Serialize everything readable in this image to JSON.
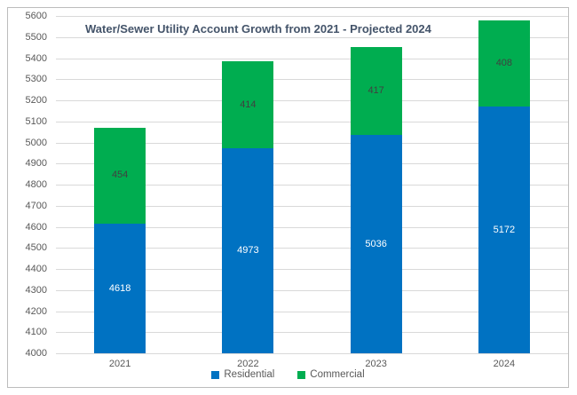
{
  "chart_data": {
    "type": "bar",
    "stacked": true,
    "title": "Water/Sewer Utility Account Growth from 2021 - Projected 2024",
    "categories": [
      "2021",
      "2022",
      "2023",
      "2024"
    ],
    "series": [
      {
        "name": "Residential",
        "color": "#0072C2",
        "label_color": "#FFFFFF",
        "values": [
          4618,
          4973,
          5036,
          5172
        ]
      },
      {
        "name": "Commercial",
        "color": "#00AD50",
        "label_color": "#404040",
        "values": [
          454,
          414,
          417,
          408
        ]
      }
    ],
    "totals": [
      5072,
      5387,
      5453,
      5580
    ],
    "xlabel": "",
    "ylabel": "",
    "ylim": [
      4000,
      5600
    ],
    "ytick_step": 100,
    "grid": true,
    "legend_position": "bottom",
    "appearance": {
      "title_color": "#44546A",
      "axis_label_color": "#595959",
      "gridline_color": "#D9D9D9",
      "frame_border_color": "#BDBDBD",
      "background_color": "#FFFFFF"
    }
  }
}
